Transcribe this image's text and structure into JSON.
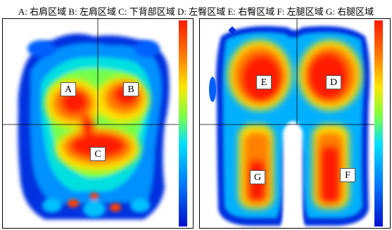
{
  "caption": "A: 右肩区域 B: 左肩区域 C: 下背部区域 D: 左臀区域 E: 右臀区域 F: 左腿区域 G: 右腿区域",
  "left_panel": {
    "labels": {
      "a": "A",
      "b": "B",
      "c": "C"
    }
  },
  "right_panel": {
    "labels": {
      "e": "E",
      "d": "D",
      "g": "G",
      "f": "F"
    }
  },
  "colors": {
    "high": "#ff1a00",
    "mid_high": "#ff8000",
    "mid": "#ffe600",
    "mid_low": "#80ff40",
    "low": "#00e0ff",
    "lower": "#0080ff",
    "lowest": "#0010d0"
  }
}
